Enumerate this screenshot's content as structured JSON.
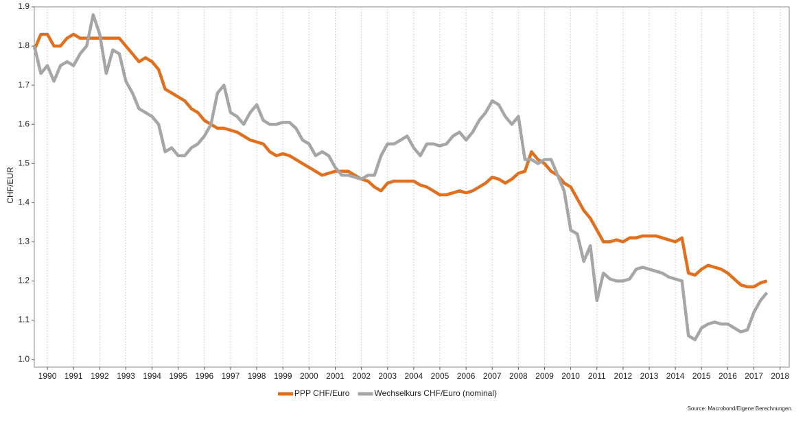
{
  "chart_data": {
    "type": "line",
    "y_label": "CHF/EUR",
    "source": "Source: Macrobond/Eigene Berechnungen.",
    "x": [
      1990,
      1990.25,
      1990.5,
      1990.75,
      1991,
      1991.25,
      1991.5,
      1991.75,
      1992,
      1992.25,
      1992.5,
      1992.75,
      1993,
      1993.25,
      1993.5,
      1993.75,
      1994,
      1994.25,
      1994.5,
      1994.75,
      1995,
      1995.25,
      1995.5,
      1995.75,
      1996,
      1996.25,
      1996.5,
      1996.75,
      1997,
      1997.25,
      1997.5,
      1997.75,
      1998,
      1998.25,
      1998.5,
      1998.75,
      1999,
      1999.25,
      1999.5,
      1999.75,
      2000,
      2000.25,
      2000.5,
      2000.75,
      2001,
      2001.25,
      2001.5,
      2001.75,
      2002,
      2002.25,
      2002.5,
      2002.75,
      2003,
      2003.25,
      2003.5,
      2003.75,
      2004,
      2004.25,
      2004.5,
      2004.75,
      2005,
      2005.25,
      2005.5,
      2005.75,
      2006,
      2006.25,
      2006.5,
      2006.75,
      2007,
      2007.25,
      2007.5,
      2007.75,
      2008,
      2008.25,
      2008.5,
      2008.75,
      2009,
      2009.25,
      2009.5,
      2009.75,
      2010,
      2010.25,
      2010.5,
      2010.75,
      2011,
      2011.25,
      2011.5,
      2011.75,
      2012,
      2012.25,
      2012.5,
      2012.75,
      2013,
      2013.25,
      2013.5,
      2013.75,
      2014,
      2014.25,
      2014.5,
      2014.75,
      2015,
      2015.25,
      2015.5,
      2015.75,
      2016,
      2016.25,
      2016.5,
      2016.75,
      2017,
      2017.25,
      2017.5,
      2017.75,
      2018
    ],
    "series": [
      {
        "name": "PPP CHF/Euro",
        "color": "#e0701e",
        "values": [
          1.79,
          1.83,
          1.83,
          1.8,
          1.8,
          1.82,
          1.83,
          1.82,
          1.82,
          1.82,
          1.82,
          1.82,
          1.82,
          1.82,
          1.8,
          1.78,
          1.76,
          1.77,
          1.76,
          1.74,
          1.69,
          1.68,
          1.67,
          1.66,
          1.64,
          1.63,
          1.61,
          1.6,
          1.59,
          1.59,
          1.585,
          1.58,
          1.57,
          1.56,
          1.555,
          1.55,
          1.53,
          1.52,
          1.525,
          1.52,
          1.51,
          1.5,
          1.49,
          1.48,
          1.47,
          1.475,
          1.48,
          1.48,
          1.48,
          1.47,
          1.46,
          1.455,
          1.44,
          1.43,
          1.45,
          1.455,
          1.455,
          1.455,
          1.455,
          1.445,
          1.44,
          1.43,
          1.42,
          1.42,
          1.425,
          1.43,
          1.425,
          1.43,
          1.44,
          1.45,
          1.465,
          1.46,
          1.45,
          1.46,
          1.475,
          1.48,
          1.53,
          1.51,
          1.5,
          1.48,
          1.47,
          1.45,
          1.44,
          1.41,
          1.38,
          1.36,
          1.33,
          1.3,
          1.3,
          1.305,
          1.3,
          1.31,
          1.31,
          1.315,
          1.315,
          1.315,
          1.31,
          1.305,
          1.3,
          1.31,
          1.22,
          1.215,
          1.23,
          1.24,
          1.235,
          1.23,
          1.22,
          1.205,
          1.19,
          1.185,
          1.185,
          1.195,
          1.2
        ]
      },
      {
        "name": "Wechselkurs CHF/Euro (nominal)",
        "color": "#a6a6a6",
        "values": [
          1.8,
          1.73,
          1.75,
          1.71,
          1.75,
          1.76,
          1.75,
          1.78,
          1.8,
          1.88,
          1.83,
          1.73,
          1.79,
          1.78,
          1.71,
          1.68,
          1.64,
          1.63,
          1.62,
          1.6,
          1.53,
          1.54,
          1.52,
          1.52,
          1.54,
          1.55,
          1.57,
          1.6,
          1.68,
          1.7,
          1.63,
          1.62,
          1.6,
          1.63,
          1.65,
          1.61,
          1.6,
          1.6,
          1.605,
          1.605,
          1.59,
          1.56,
          1.55,
          1.52,
          1.53,
          1.52,
          1.49,
          1.47,
          1.47,
          1.465,
          1.46,
          1.47,
          1.47,
          1.52,
          1.55,
          1.55,
          1.56,
          1.57,
          1.54,
          1.52,
          1.55,
          1.55,
          1.545,
          1.55,
          1.57,
          1.58,
          1.56,
          1.58,
          1.61,
          1.63,
          1.66,
          1.65,
          1.62,
          1.6,
          1.62,
          1.51,
          1.51,
          1.5,
          1.51,
          1.51,
          1.47,
          1.43,
          1.33,
          1.32,
          1.25,
          1.29,
          1.15,
          1.22,
          1.205,
          1.2,
          1.2,
          1.205,
          1.23,
          1.235,
          1.23,
          1.225,
          1.22,
          1.21,
          1.205,
          1.2,
          1.06,
          1.05,
          1.08,
          1.09,
          1.095,
          1.09,
          1.09,
          1.08,
          1.07,
          1.075,
          1.12,
          1.15,
          1.17
        ]
      }
    ],
    "xlim": [
      1990,
      2018.85
    ],
    "xticks": [
      {
        "value": 1990.5,
        "label": "1990"
      },
      {
        "value": 1991.5,
        "label": "1991"
      },
      {
        "value": 1992.5,
        "label": "1992"
      },
      {
        "value": 1993.5,
        "label": "1993"
      },
      {
        "value": 1994.5,
        "label": "1994"
      },
      {
        "value": 1995.5,
        "label": "1995"
      },
      {
        "value": 1996.5,
        "label": "1996"
      },
      {
        "value": 1997.5,
        "label": "1997"
      },
      {
        "value": 1998.5,
        "label": "1998"
      },
      {
        "value": 1999.5,
        "label": "1999"
      },
      {
        "value": 2000.5,
        "label": "2000"
      },
      {
        "value": 2001.5,
        "label": "2001"
      },
      {
        "value": 2002.5,
        "label": "2002"
      },
      {
        "value": 2003.5,
        "label": "2003"
      },
      {
        "value": 2004.5,
        "label": "2004"
      },
      {
        "value": 2005.5,
        "label": "2005"
      },
      {
        "value": 2006.5,
        "label": "2006"
      },
      {
        "value": 2007.5,
        "label": "2007"
      },
      {
        "value": 2008.5,
        "label": "2008"
      },
      {
        "value": 2009.5,
        "label": "2009"
      },
      {
        "value": 2010.5,
        "label": "2010"
      },
      {
        "value": 2011.5,
        "label": "2011"
      },
      {
        "value": 2012.5,
        "label": "2012"
      },
      {
        "value": 2013.5,
        "label": "2013"
      },
      {
        "value": 2014.5,
        "label": "2014"
      },
      {
        "value": 2015.5,
        "label": "2015"
      },
      {
        "value": 2016.5,
        "label": "2016"
      },
      {
        "value": 2017.5,
        "label": "2017"
      },
      {
        "value": 2018.5,
        "label": "2018"
      }
    ],
    "ylim": [
      0.98,
      1.9
    ],
    "yticks": [
      {
        "value": 1,
        "label": "1.0"
      },
      1.1,
      1.2,
      1.3,
      1.4,
      1.5,
      1.6,
      1.7,
      1.8,
      1.9
    ],
    "grid": "x"
  }
}
